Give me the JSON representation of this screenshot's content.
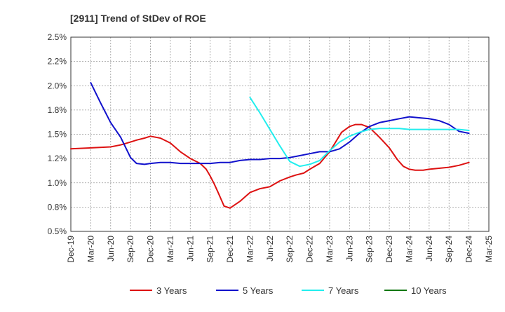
{
  "chart_data": {
    "type": "line",
    "title": "[2911]  Trend of StDev of ROE",
    "xlabel": "",
    "ylabel": "",
    "x_ticks": [
      "Dec-19",
      "Mar-20",
      "Jun-20",
      "Sep-20",
      "Dec-20",
      "Mar-21",
      "Jun-21",
      "Sep-21",
      "Dec-21",
      "Mar-22",
      "Jun-22",
      "Sep-22",
      "Dec-22",
      "Mar-23",
      "Jun-23",
      "Sep-23",
      "Dec-23",
      "Mar-24",
      "Jun-24",
      "Sep-24",
      "Dec-24",
      "Mar-25"
    ],
    "y_ticks": [
      "0.5%",
      "0.8%",
      "1.0%",
      "1.2%",
      "1.5%",
      "1.8%",
      "2.0%",
      "2.2%",
      "2.5%"
    ],
    "ylim": [
      0.5,
      2.5
    ],
    "grid": true,
    "legend_position": "bottom",
    "colors": {
      "3 Years": "#dd1111",
      "5 Years": "#1111cc",
      "7 Years": "#22eeee",
      "10 Years": "#117711"
    },
    "series": [
      {
        "name": "3 Years",
        "x": [
          0,
          1,
          2,
          2.5,
          3,
          3.3,
          3.7,
          4,
          4.5,
          5,
          5.5,
          6,
          6.5,
          6.8,
          7,
          7.2,
          7.4,
          7.7,
          8,
          8.5,
          9,
          9.5,
          10,
          10.5,
          11,
          11.3,
          11.7,
          12,
          12.5,
          13,
          13.3,
          13.6,
          14,
          14.3,
          14.6,
          15,
          15.5,
          16,
          16.4,
          16.7,
          17,
          17.3,
          17.7,
          18,
          18.5,
          19,
          19.5,
          20
        ],
        "y": [
          1.35,
          1.36,
          1.37,
          1.39,
          1.42,
          1.44,
          1.46,
          1.48,
          1.46,
          1.41,
          1.32,
          1.25,
          1.2,
          1.14,
          1.07,
          0.99,
          0.9,
          0.76,
          0.74,
          0.81,
          0.9,
          0.94,
          0.96,
          1.02,
          1.06,
          1.08,
          1.1,
          1.14,
          1.2,
          1.32,
          1.42,
          1.52,
          1.58,
          1.6,
          1.6,
          1.57,
          1.47,
          1.36,
          1.24,
          1.17,
          1.14,
          1.13,
          1.13,
          1.14,
          1.15,
          1.16,
          1.18,
          1.21
        ]
      },
      {
        "name": "5 Years",
        "x": [
          1,
          1.5,
          2,
          2.5,
          3,
          3.3,
          3.7,
          4,
          4.5,
          5,
          5.5,
          6,
          6.5,
          7,
          7.5,
          8,
          8.5,
          9,
          9.5,
          10,
          10.5,
          11,
          11.5,
          12,
          12.5,
          13,
          13.5,
          14,
          14.5,
          15,
          15.5,
          16,
          16.5,
          17,
          17.5,
          18,
          18.5,
          19,
          19.5,
          20
        ],
        "y": [
          2.03,
          1.82,
          1.62,
          1.47,
          1.26,
          1.2,
          1.19,
          1.2,
          1.21,
          1.21,
          1.2,
          1.2,
          1.2,
          1.2,
          1.21,
          1.21,
          1.23,
          1.24,
          1.24,
          1.25,
          1.25,
          1.26,
          1.28,
          1.3,
          1.32,
          1.32,
          1.35,
          1.42,
          1.51,
          1.58,
          1.62,
          1.64,
          1.66,
          1.68,
          1.67,
          1.66,
          1.64,
          1.6,
          1.53,
          1.51
        ]
      },
      {
        "name": "7 Years",
        "x": [
          9,
          9.5,
          10,
          10.5,
          11,
          11.5,
          12,
          12.5,
          13,
          13.5,
          14,
          14.5,
          15,
          15.5,
          16,
          16.5,
          17,
          17.5,
          18,
          18.5,
          19,
          19.5,
          20
        ],
        "y": [
          1.88,
          1.72,
          1.55,
          1.38,
          1.22,
          1.17,
          1.19,
          1.23,
          1.33,
          1.42,
          1.48,
          1.52,
          1.55,
          1.56,
          1.56,
          1.56,
          1.55,
          1.55,
          1.55,
          1.55,
          1.55,
          1.55,
          1.54
        ]
      },
      {
        "name": "10 Years",
        "x": [],
        "y": []
      }
    ]
  }
}
